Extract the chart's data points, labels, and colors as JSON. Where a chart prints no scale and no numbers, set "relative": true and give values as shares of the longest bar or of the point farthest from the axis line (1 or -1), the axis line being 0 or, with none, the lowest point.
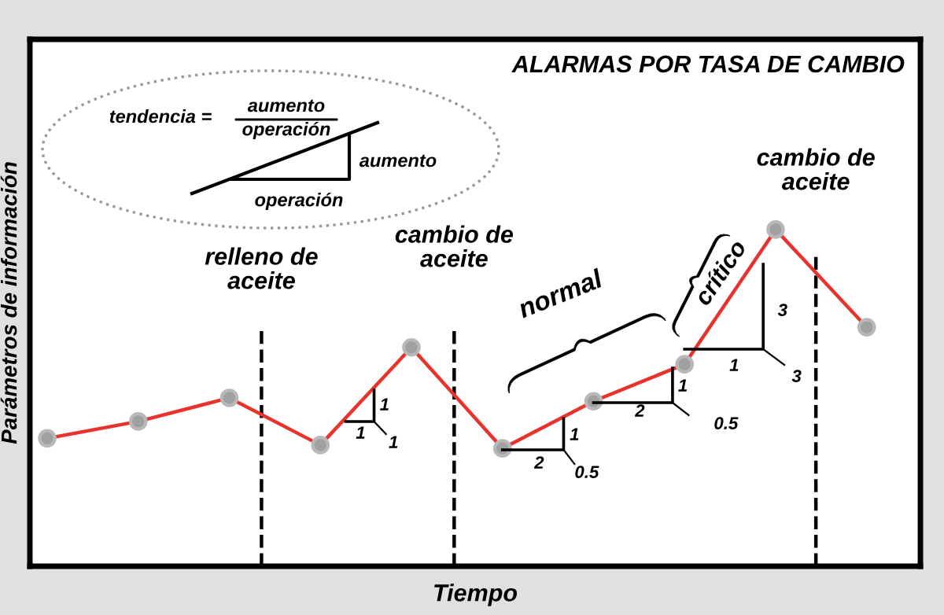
{
  "chart_data": {
    "type": "line",
    "relative": true,
    "title": "ALARMAS POR TASA DE CAMBIO",
    "xlabel": "Tiempo",
    "ylabel": "Parámetros de información",
    "categories": [
      null,
      null,
      null,
      null,
      null,
      null,
      null,
      null,
      null,
      null
    ],
    "tick_labels": false,
    "series": [
      {
        "color": "#e8322d",
        "values": [
          0.38,
          0.43,
          0.5,
          0.36,
          0.65,
          0.35,
          0.49,
          0.6,
          1,
          0.71
        ]
      }
    ],
    "marker": "circle",
    "line_style": "solid",
    "ref_lines": [
      {
        "axis": "x",
        "label": "relleno de\naceite",
        "color": "#000000",
        "line_style": "dashed"
      },
      {
        "axis": "x",
        "label": "cambio de\naceite",
        "color": "#000000",
        "line_style": "dashed"
      },
      {
        "axis": "x",
        "label": "cambio de\naceite",
        "color": "#000000",
        "line_style": "dashed"
      }
    ],
    "annotations": [
      "tendencia =",
      "aumento",
      "operación",
      "aumento",
      "operación",
      "normal",
      "crítico",
      "1",
      "1",
      "1",
      "1",
      "2",
      "0.5",
      "1",
      "2",
      "0.5",
      "3",
      "1",
      "3"
    ]
  }
}
